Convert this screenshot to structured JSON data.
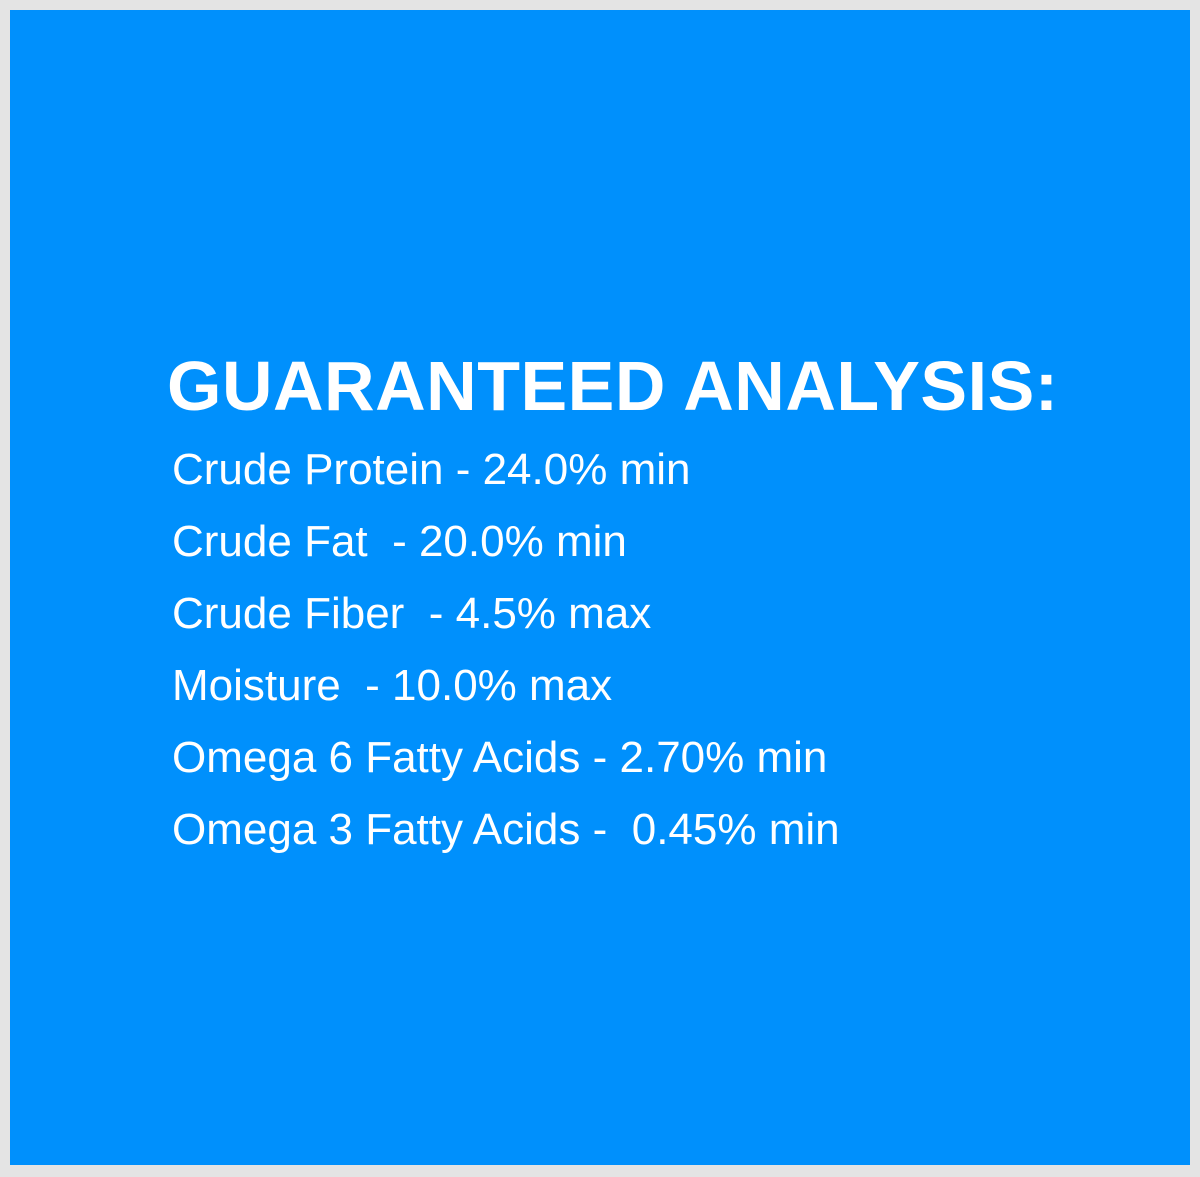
{
  "colors": {
    "background": "#0090fc",
    "border": "#e4e4e4",
    "text": "#ffffff"
  },
  "title": "GUARANTEED ANALYSIS:",
  "items": [
    "Crude Protein - 24.0% min",
    "Crude Fat  - 20.0% min",
    "Crude Fiber  - 4.5% max",
    "Moisture  - 10.0% max",
    "Omega 6 Fatty Acids - 2.70% min",
    "Omega 3 Fatty Acids -  0.45% min"
  ]
}
